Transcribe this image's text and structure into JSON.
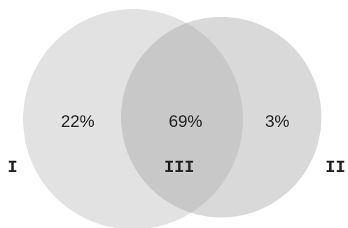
{
  "diagram": {
    "type": "venn",
    "sets": [
      {
        "id": "I",
        "label": "I",
        "share": "22%",
        "color": "#e2e2e2"
      },
      {
        "id": "II",
        "label": "II",
        "share": "3%",
        "color": "#d9d9d9"
      }
    ],
    "overlap": {
      "id": "III",
      "label": "III",
      "share": "69%",
      "color": "#c8c8c8"
    }
  }
}
